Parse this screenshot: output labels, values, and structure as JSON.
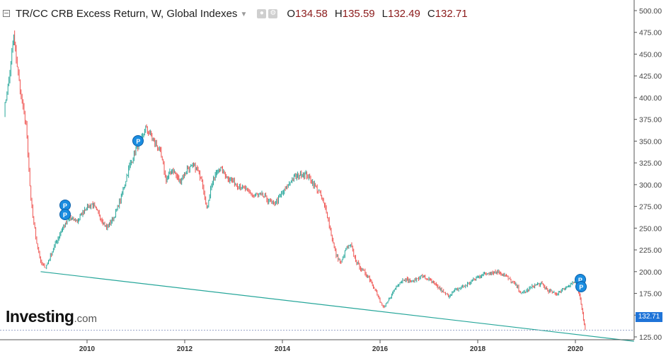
{
  "header": {
    "title": "TR/CC CRB Excess Return, W, Global Indexes",
    "ohlc": [
      {
        "key": "O",
        "value": "134.58"
      },
      {
        "key": "H",
        "value": "135.59"
      },
      {
        "key": "L",
        "value": "132.49"
      },
      {
        "key": "C",
        "value": "132.71"
      }
    ]
  },
  "logo": {
    "name": "Investing",
    "suffix": ".com"
  },
  "last_price_label": "132.71",
  "flag_label": "P",
  "colors": {
    "up": "#26a69a",
    "down": "#ef5350",
    "trendline": "#26a69a",
    "flag": "#1a8de0",
    "price_tag": "#1f74d8"
  },
  "chart_data": {
    "type": "line",
    "style": "weekly candlestick",
    "title": "TR/CC CRB Excess Return, W, Global Indexes",
    "x_ticks": [
      "2010",
      "2012",
      "2014",
      "2016",
      "2018",
      "2020"
    ],
    "x_tick_values": [
      2010,
      2012,
      2014,
      2016,
      2018,
      2020
    ],
    "y_ticks": [
      "125.00",
      "150.00",
      "175.00",
      "200.00",
      "225.00",
      "250.00",
      "275.00",
      "300.00",
      "325.00",
      "350.00",
      "375.00",
      "400.00",
      "425.00",
      "450.00",
      "475.00",
      "500.00"
    ],
    "y_tick_values": [
      125,
      150,
      175,
      200,
      225,
      250,
      275,
      300,
      325,
      350,
      375,
      400,
      425,
      450,
      475,
      500
    ],
    "xlim": [
      2008.3,
      2021.2
    ],
    "ylim": [
      112,
      510
    ],
    "last_price": 132.71,
    "series": [
      {
        "name": "TR/CC CRB Excess Return",
        "points": [
          [
            2008.3,
            385
          ],
          [
            2008.4,
            420
          ],
          [
            2008.5,
            470
          ],
          [
            2008.55,
            445
          ],
          [
            2008.65,
            400
          ],
          [
            2008.75,
            370
          ],
          [
            2008.85,
            280
          ],
          [
            2008.95,
            240
          ],
          [
            2009.05,
            210
          ],
          [
            2009.15,
            205
          ],
          [
            2009.25,
            218
          ],
          [
            2009.35,
            232
          ],
          [
            2009.5,
            250
          ],
          [
            2009.65,
            262
          ],
          [
            2009.8,
            258
          ],
          [
            2009.95,
            272
          ],
          [
            2010.1,
            278
          ],
          [
            2010.25,
            265
          ],
          [
            2010.4,
            250
          ],
          [
            2010.55,
            263
          ],
          [
            2010.7,
            285
          ],
          [
            2010.85,
            318
          ],
          [
            2011.0,
            340
          ],
          [
            2011.1,
            350
          ],
          [
            2011.2,
            365
          ],
          [
            2011.35,
            352
          ],
          [
            2011.5,
            337
          ],
          [
            2011.62,
            305
          ],
          [
            2011.75,
            318
          ],
          [
            2011.9,
            303
          ],
          [
            2012.05,
            318
          ],
          [
            2012.2,
            322
          ],
          [
            2012.35,
            307
          ],
          [
            2012.45,
            272
          ],
          [
            2012.55,
            300
          ],
          [
            2012.7,
            320
          ],
          [
            2012.85,
            310
          ],
          [
            2013.0,
            302
          ],
          [
            2013.2,
            296
          ],
          [
            2013.4,
            288
          ],
          [
            2013.6,
            287
          ],
          [
            2013.8,
            278
          ],
          [
            2013.9,
            282
          ],
          [
            2014.1,
            298
          ],
          [
            2014.2,
            306
          ],
          [
            2014.35,
            312
          ],
          [
            2014.5,
            311
          ],
          [
            2014.6,
            304
          ],
          [
            2014.75,
            292
          ],
          [
            2014.9,
            270
          ],
          [
            2015.0,
            243
          ],
          [
            2015.1,
            218
          ],
          [
            2015.2,
            210
          ],
          [
            2015.3,
            226
          ],
          [
            2015.4,
            230
          ],
          [
            2015.5,
            213
          ],
          [
            2015.6,
            204
          ],
          [
            2015.75,
            195
          ],
          [
            2015.9,
            180
          ],
          [
            2016.0,
            165
          ],
          [
            2016.08,
            158
          ],
          [
            2016.2,
            170
          ],
          [
            2016.35,
            185
          ],
          [
            2016.5,
            192
          ],
          [
            2016.65,
            188
          ],
          [
            2016.85,
            195
          ],
          [
            2017.0,
            191
          ],
          [
            2017.15,
            184
          ],
          [
            2017.3,
            176
          ],
          [
            2017.4,
            172
          ],
          [
            2017.55,
            179
          ],
          [
            2017.75,
            184
          ],
          [
            2017.95,
            192
          ],
          [
            2018.1,
            197
          ],
          [
            2018.25,
            199
          ],
          [
            2018.4,
            200
          ],
          [
            2018.55,
            196
          ],
          [
            2018.7,
            188
          ],
          [
            2018.8,
            183
          ],
          [
            2018.9,
            175
          ],
          [
            2019.0,
            178
          ],
          [
            2019.15,
            184
          ],
          [
            2019.3,
            186
          ],
          [
            2019.45,
            178
          ],
          [
            2019.6,
            174
          ],
          [
            2019.75,
            180
          ],
          [
            2019.9,
            186
          ],
          [
            2020.0,
            188
          ],
          [
            2020.05,
            180
          ],
          [
            2020.1,
            168
          ],
          [
            2020.15,
            152
          ],
          [
            2020.18,
            140
          ],
          [
            2020.2,
            133
          ]
        ]
      }
    ],
    "trendline": {
      "start": [
        2009.05,
        200
      ],
      "end": [
        2021.2,
        120
      ]
    },
    "annotations": [
      {
        "label": "P",
        "x": 2009.55,
        "y": 276
      },
      {
        "label": "P",
        "x": 2009.55,
        "y": 266
      },
      {
        "label": "P",
        "x": 2011.05,
        "y": 350
      },
      {
        "label": "P",
        "x": 2020.1,
        "y": 191
      },
      {
        "label": "P",
        "x": 2020.12,
        "y": 183
      }
    ]
  }
}
